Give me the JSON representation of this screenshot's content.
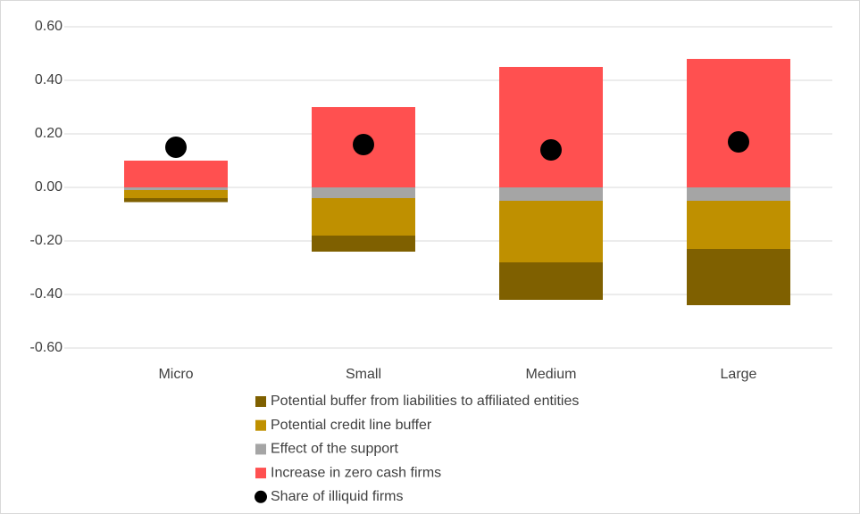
{
  "chart_data": {
    "type": "bar",
    "stacked": true,
    "categories": [
      "Micro",
      "Small",
      "Medium",
      "Large"
    ],
    "series": [
      {
        "name": "Potential buffer from liabilities to affiliated entities",
        "color": "#7f6000",
        "values": [
          -0.015,
          -0.06,
          -0.14,
          -0.21
        ]
      },
      {
        "name": "Potential credit line buffer",
        "color": "#bf9000",
        "values": [
          -0.03,
          -0.14,
          -0.23,
          -0.18
        ]
      },
      {
        "name": "Effect of the support",
        "color": "#a5a5a5",
        "values": [
          -0.01,
          -0.04,
          -0.05,
          -0.05
        ]
      },
      {
        "name": "Increase in zero cash firms",
        "color": "#ff5050",
        "values": [
          0.1,
          0.3,
          0.45,
          0.48
        ]
      },
      {
        "name": "Share of illiquid firms",
        "color": "#000000",
        "type": "scatter",
        "values": [
          0.15,
          0.16,
          0.14,
          0.17
        ]
      }
    ],
    "ylim": [
      -0.6,
      0.6
    ],
    "yticks": [
      {
        "value": -0.6,
        "label": "-0.60"
      },
      {
        "value": -0.4,
        "label": "-0.40"
      },
      {
        "value": -0.2,
        "label": "-0.20"
      },
      {
        "value": 0,
        "label": "0.00"
      },
      {
        "value": 0.2,
        "label": "0.20"
      },
      {
        "value": 0.4,
        "label": "0.40"
      },
      {
        "value": 0.6,
        "label": "0.60"
      }
    ],
    "grid": true,
    "legend": "bottom"
  }
}
